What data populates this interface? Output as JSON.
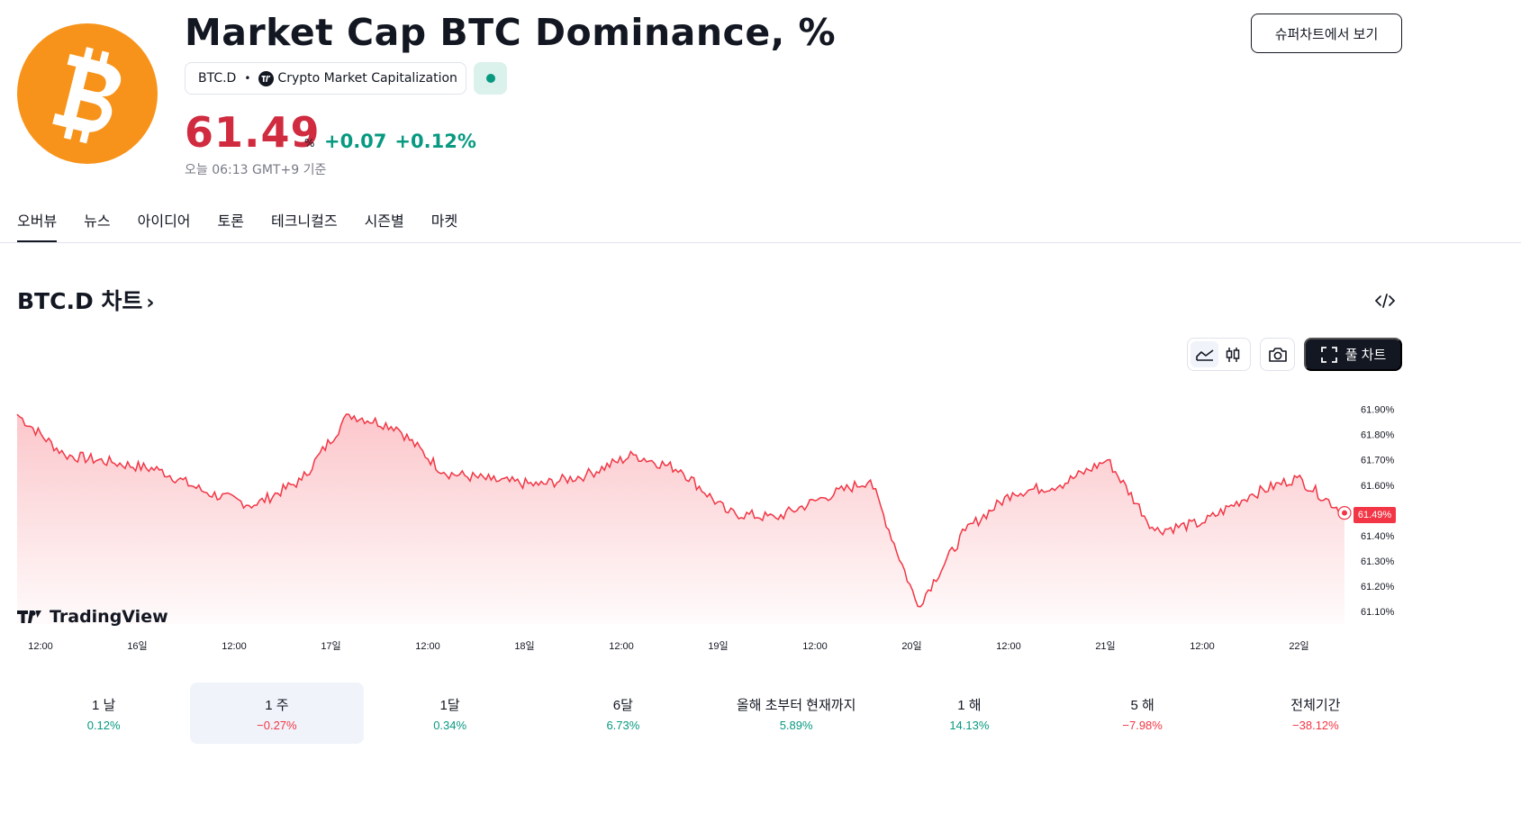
{
  "header": {
    "title": "Market Cap BTC Dominance, %",
    "symbol": "BTC.D",
    "source_name": "Crypto Market Capitalization",
    "price": "61.49",
    "price_unit": "%",
    "change_abs": "+0.07",
    "change_pct": "+0.12%",
    "as_of": "오늘 06:13 GMT+9 기준",
    "supercharts_label": "슈퍼차트에서 보기"
  },
  "colors": {
    "bitcoin_orange": "#f7931a",
    "price_red": "#d02b3f",
    "positive_green": "#089981",
    "negative_red": "#f23645",
    "line_red": "#f23645"
  },
  "tabs": [
    {
      "label": "오버뷰",
      "active": true
    },
    {
      "label": "뉴스"
    },
    {
      "label": "아이디어"
    },
    {
      "label": "토론"
    },
    {
      "label": "테크니컬즈"
    },
    {
      "label": "시즌별"
    },
    {
      "label": "마켓"
    }
  ],
  "section": {
    "title": "BTC.D 차트",
    "chevron": "›"
  },
  "chart_toolbar": {
    "fullchart_label": "풀 차트",
    "icons": [
      "area-chart-icon",
      "candles-icon",
      "camera-icon",
      "fullscreen-icon",
      "embed-code-icon"
    ]
  },
  "chart_data": {
    "type": "area",
    "x_tick_labels": [
      "12:00",
      "16일",
      "12:00",
      "17일",
      "12:00",
      "18일",
      "12:00",
      "19일",
      "12:00",
      "20일",
      "12:00",
      "21일",
      "12:00",
      "22일"
    ],
    "y_tick_labels": [
      "61.90%",
      "61.80%",
      "61.70%",
      "61.60%",
      "61.40%",
      "61.30%",
      "61.20%",
      "61.10%"
    ],
    "ylim": [
      61.05,
      61.97
    ],
    "last_value_label": "61.49%",
    "x": [
      "15일 06:00",
      "15일 12:00",
      "15일 18:00",
      "16일 00:00",
      "16일 06:00",
      "16일 12:00",
      "16일 18:00",
      "17일 00:00",
      "17일 06:00",
      "17일 12:00",
      "17일 18:00",
      "18일 00:00",
      "18일 06:00",
      "18일 12:00",
      "18일 18:00",
      "19일 00:00",
      "19일 06:00",
      "19일 12:00",
      "19일 18:00",
      "20일 00:00",
      "20일 06:00",
      "20일 12:00",
      "20일 18:00",
      "21일 00:00",
      "21일 06:00",
      "21일 12:00",
      "21일 18:00",
      "22일 00:00",
      "22일 06:00"
    ],
    "values": [
      61.88,
      61.72,
      61.69,
      61.66,
      61.57,
      61.52,
      61.62,
      61.88,
      61.83,
      61.65,
      61.62,
      61.6,
      61.64,
      61.72,
      61.66,
      61.49,
      61.47,
      61.55,
      61.62,
      61.12,
      61.42,
      61.57,
      61.6,
      61.7,
      61.42,
      61.45,
      61.56,
      61.63,
      61.49
    ],
    "grid": false
  },
  "watermark": "TradingView",
  "periods": [
    {
      "label": "1 날",
      "value": "0.12%",
      "sign": "pos"
    },
    {
      "label": "1 주",
      "value": "−0.27%",
      "sign": "neg",
      "active": true
    },
    {
      "label": "1달",
      "value": "0.34%",
      "sign": "pos"
    },
    {
      "label": "6달",
      "value": "6.73%",
      "sign": "pos"
    },
    {
      "label": "올해 초부터 현재까지",
      "value": "5.89%",
      "sign": "pos"
    },
    {
      "label": "1 해",
      "value": "14.13%",
      "sign": "pos"
    },
    {
      "label": "5 해",
      "value": "−7.98%",
      "sign": "neg"
    },
    {
      "label": "전체기간",
      "value": "−38.12%",
      "sign": "neg"
    }
  ]
}
